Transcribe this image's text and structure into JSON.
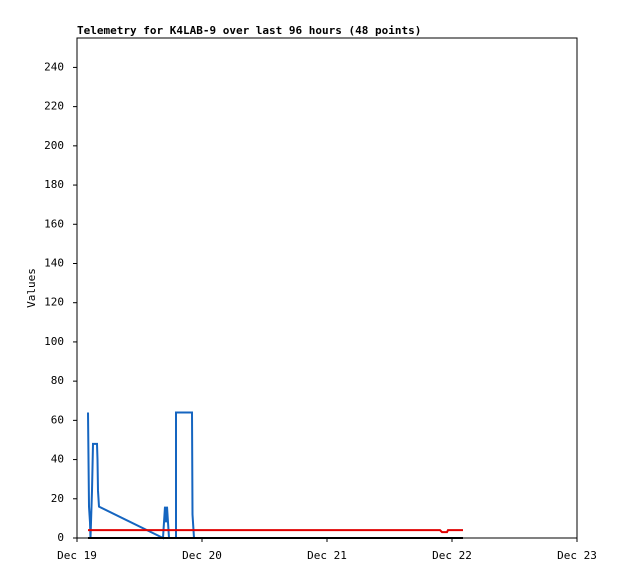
{
  "chart_data": {
    "type": "line",
    "title": "Telemetry for K4LAB-9 over last 96 hours (48 points)",
    "y_label": "Values",
    "xlim": [
      19,
      23
    ],
    "xticks": [
      {
        "value": 19,
        "label": "Dec 19"
      },
      {
        "value": 20,
        "label": "Dec 20"
      },
      {
        "value": 21,
        "label": "Dec 21"
      },
      {
        "value": 22,
        "label": "Dec 22"
      },
      {
        "value": 23,
        "label": "Dec 23"
      }
    ],
    "ylim": [
      0,
      255
    ],
    "yticks": [
      0,
      20,
      40,
      60,
      80,
      100,
      120,
      140,
      160,
      180,
      200,
      220,
      240
    ],
    "grid": false,
    "series": [
      {
        "color": "#1565c0",
        "x": [
          19.088,
          19.096,
          19.104,
          19.108,
          19.112,
          19.12,
          19.128,
          19.16,
          19.164,
          19.168,
          19.176,
          19.688,
          19.704,
          19.712,
          19.72,
          19.728,
          19.736,
          19.792,
          19.792,
          19.92,
          19.924,
          19.936
        ],
        "values": [
          64,
          16,
          8,
          0,
          8,
          24,
          48,
          48,
          40,
          24,
          16,
          0,
          16,
          8,
          16,
          8,
          0,
          0,
          64,
          64,
          12,
          0
        ]
      },
      {
        "color": "#e00000",
        "x": [
          19.088,
          21.904,
          21.92,
          21.96,
          21.968,
          22.088
        ],
        "values": [
          4,
          4,
          3,
          3,
          4,
          4
        ]
      },
      {
        "color": "#000000",
        "x": [
          19.088,
          22.088
        ],
        "values": [
          0,
          0
        ]
      }
    ]
  }
}
